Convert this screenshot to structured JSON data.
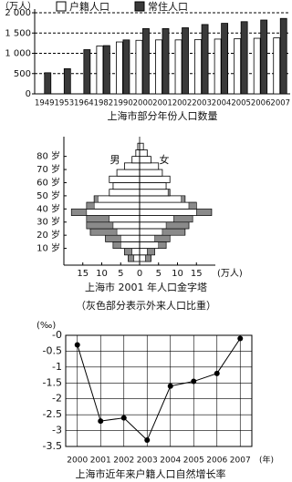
{
  "chart_data": [
    {
      "type": "bar",
      "title": "上海市部分年份人口数量",
      "y_unit": "（万人）",
      "categories": [
        "1949",
        "1953",
        "1964",
        "1982",
        "1990",
        "2000",
        "2001",
        "2002",
        "2003",
        "2004",
        "2005",
        "2006",
        "2007"
      ],
      "series": [
        {
          "name": "户籍人口",
          "color": "#ffffff",
          "values": [
            null,
            null,
            null,
            1180,
            1280,
            1320,
            1330,
            1330,
            1340,
            1350,
            1360,
            1370,
            1380
          ]
        },
        {
          "name": "常住人口",
          "color": "#3a3a3a",
          "values": [
            520,
            620,
            1090,
            1190,
            1330,
            1610,
            1610,
            1630,
            1710,
            1740,
            1780,
            1820,
            1860
          ]
        }
      ],
      "ylim": [
        0,
        2000
      ],
      "yticks": [
        0,
        500,
        {
          "value": 1000,
          "label": "1 000"
        },
        {
          "value": 1500,
          "label": "1 500"
        },
        {
          "value": 2000,
          "label": "2 000"
        }
      ],
      "grid": true
    },
    {
      "type": "pyramid",
      "title": "上海市 2001 年人口金字塔",
      "subtitle": "（灰色部分表示外来人口比重）",
      "x_unit": "(万人)",
      "age_bins": [
        0,
        5,
        10,
        15,
        20,
        25,
        30,
        35,
        40,
        45,
        50,
        55,
        60,
        65,
        70,
        75,
        80,
        85,
        90
      ],
      "series": [
        {
          "name": "男",
          "color": "#ffffff",
          "migrant_color": "#8a8a8a",
          "values": [
            3,
            4,
            7,
            9,
            13,
            14,
            14,
            18,
            14,
            12,
            8,
            7,
            8,
            6,
            4,
            2,
            1,
            0.5
          ],
          "migrant_values": [
            1.5,
            2,
            2,
            4,
            7,
            7,
            6,
            4,
            2,
            1,
            0,
            0,
            0,
            0,
            0,
            0,
            0,
            0
          ]
        },
        {
          "name": "女",
          "color": "#ffffff",
          "migrant_color": "#8a8a8a",
          "values": [
            3,
            4,
            7,
            8,
            12,
            13,
            14,
            19,
            15,
            12,
            8,
            7,
            8,
            6,
            5,
            3,
            2,
            1
          ],
          "migrant_values": [
            1.5,
            2,
            2,
            4,
            6,
            6,
            5,
            4,
            2,
            1,
            0.5,
            0,
            0,
            0,
            0,
            0,
            0,
            0
          ]
        }
      ],
      "xlim": [
        -20,
        20
      ],
      "xticks": [
        {
          "value": -15,
          "label": "15"
        },
        {
          "value": -10,
          "label": "10"
        },
        {
          "value": -5,
          "label": "5"
        },
        0,
        5,
        10,
        15
      ],
      "ylim": [
        0,
        95
      ],
      "yticks": [
        {
          "value": 10,
          "label": "10 岁"
        },
        {
          "value": 20,
          "label": "20 岁"
        },
        {
          "value": 30,
          "label": "30 岁"
        },
        {
          "value": 40,
          "label": "40 岁"
        },
        {
          "value": 50,
          "label": "50 岁"
        },
        {
          "value": 60,
          "label": "60 岁"
        },
        {
          "value": 70,
          "label": "70 岁"
        },
        {
          "value": 80,
          "label": "80 岁"
        }
      ]
    },
    {
      "type": "line",
      "title": "上海市近年来户籍人口自然增长率",
      "y_unit": "(‰)",
      "x_unit": "(年)",
      "categories": [
        "2000",
        "2001",
        "2002",
        "2003",
        "2004",
        "2005",
        "2006",
        "2007"
      ],
      "values": [
        -0.3,
        -2.7,
        -2.6,
        -3.3,
        -1.6,
        -1.45,
        -1.2,
        -0.1
      ],
      "color": "#000000",
      "ylim": [
        -3.5,
        0
      ],
      "yticks": [
        {
          "value": 0,
          "label": "-0"
        },
        -0.5,
        -1,
        -1.5,
        -2,
        -2.5,
        -3,
        -3.5
      ],
      "grid": true
    }
  ]
}
